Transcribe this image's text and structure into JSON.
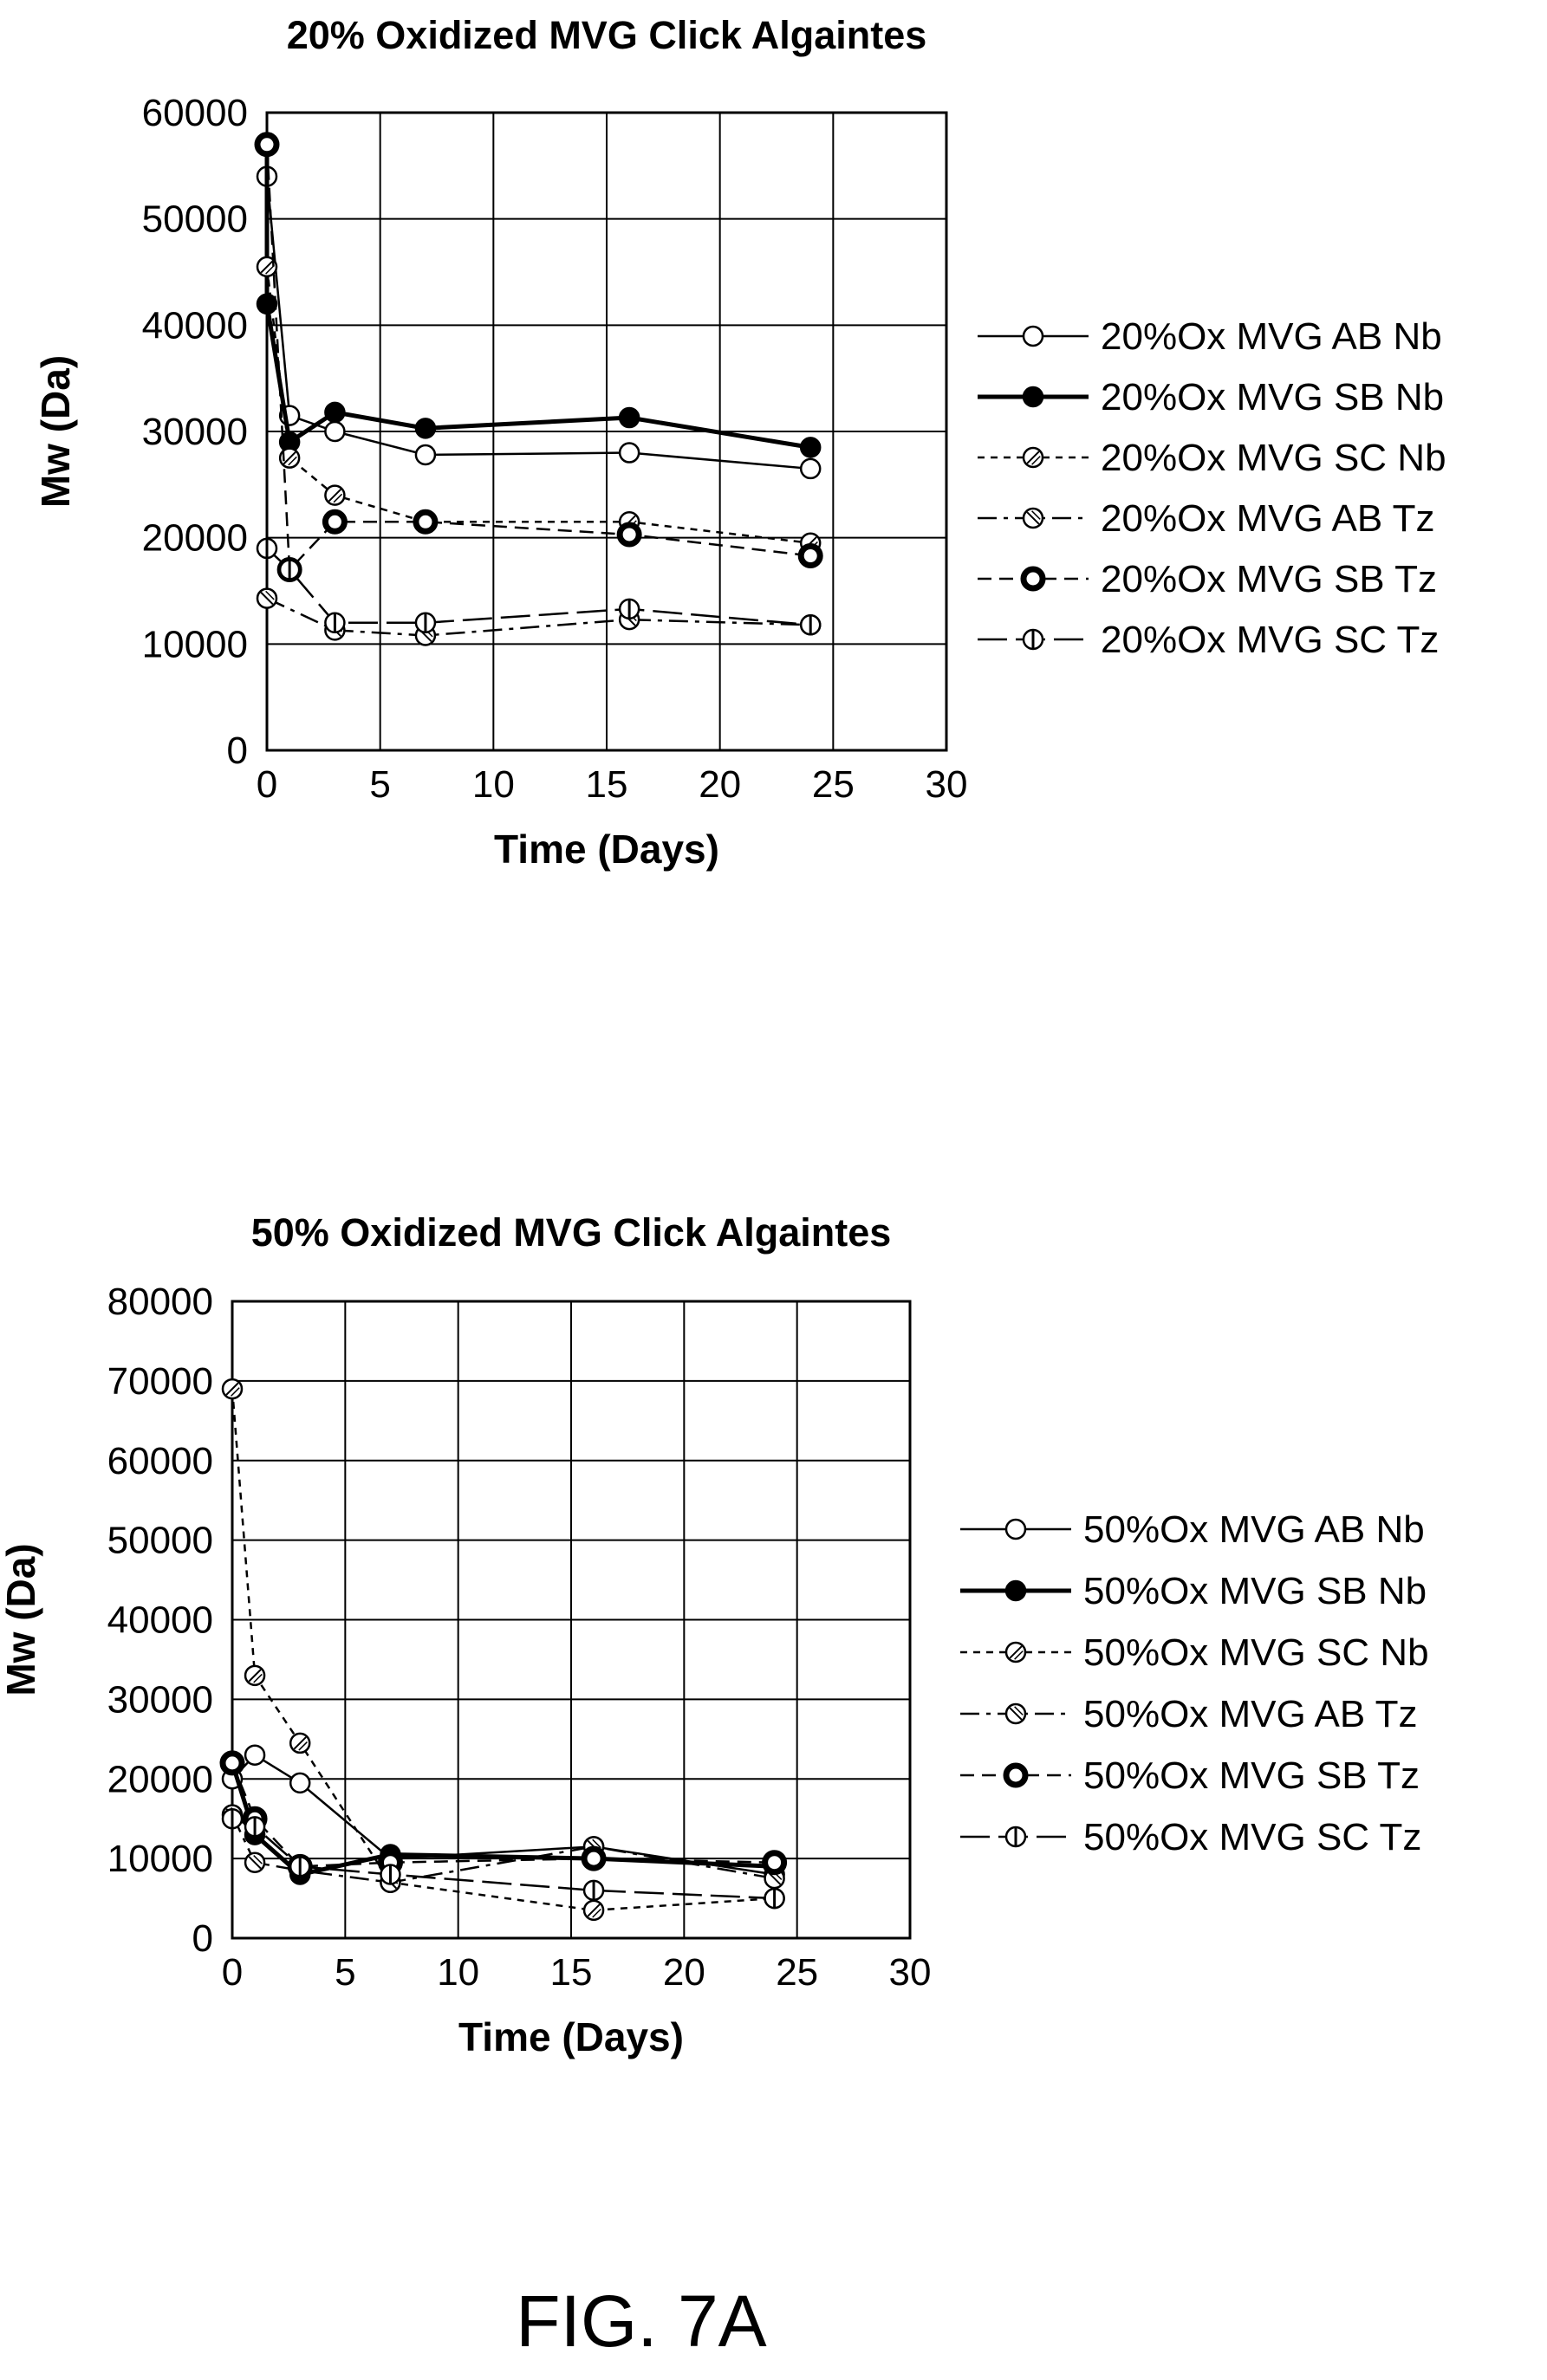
{
  "figure_label": "FIG. 7A",
  "chart_data": [
    {
      "type": "line",
      "title": "20% Oxidized MVG Click Algaintes",
      "xlabel": "Time (Days)",
      "ylabel": "Mw (Da)",
      "xlim": [
        0,
        30
      ],
      "ylim": [
        0,
        60000
      ],
      "xticks": [
        0,
        5,
        10,
        15,
        20,
        25,
        30
      ],
      "yticks": [
        0,
        10000,
        20000,
        30000,
        40000,
        50000,
        60000
      ],
      "grid": true,
      "legend_position": "right",
      "series": [
        {
          "name": "20%Ox MVG AB Nb",
          "marker": "open-circle",
          "line": "solid-thin",
          "points": [
            [
              0,
              54000
            ],
            [
              1,
              31500
            ],
            [
              3,
              30000
            ],
            [
              7,
              27800
            ],
            [
              16,
              28000
            ],
            [
              24,
              26500
            ]
          ]
        },
        {
          "name": "20%Ox MVG SB Nb",
          "marker": "filled-circle",
          "line": "solid-bold",
          "points": [
            [
              0,
              57000
            ],
            [
              0,
              42000
            ],
            [
              1,
              29000
            ],
            [
              3,
              31800
            ],
            [
              7,
              30300
            ],
            [
              16,
              31300
            ],
            [
              24,
              28500
            ]
          ]
        },
        {
          "name": "20%Ox MVG SC Nb",
          "marker": "slash-circle",
          "line": "short-dash",
          "points": [
            [
              0,
              45500
            ],
            [
              1,
              27500
            ],
            [
              3,
              24000
            ],
            [
              7,
              21500
            ],
            [
              16,
              21500
            ],
            [
              24,
              19500
            ]
          ]
        },
        {
          "name": "20%Ox MVG AB Tz",
          "marker": "backslash-circle",
          "line": "dash-dot",
          "points": [
            [
              0,
              14300
            ],
            [
              3,
              11300
            ],
            [
              7,
              10800
            ],
            [
              16,
              12300
            ],
            [
              24,
              11800
            ]
          ]
        },
        {
          "name": "20%Ox MVG SB Tz",
          "marker": "bold-ring",
          "line": "dash",
          "points": [
            [
              0,
              57000
            ],
            [
              1,
              17000
            ],
            [
              3,
              21500
            ],
            [
              7,
              21500
            ],
            [
              16,
              20300
            ],
            [
              24,
              18300
            ]
          ]
        },
        {
          "name": "20%Ox MVG SC Tz",
          "marker": "vbar-circle",
          "line": "long-dash",
          "points": [
            [
              0,
              19000
            ],
            [
              1,
              17000
            ],
            [
              3,
              12000
            ],
            [
              7,
              12000
            ],
            [
              16,
              13300
            ],
            [
              24,
              11800
            ]
          ]
        }
      ]
    },
    {
      "type": "line",
      "title": "50% Oxidized MVG Click Algaintes",
      "xlabel": "Time (Days)",
      "ylabel": "Mw (Da)",
      "xlim": [
        0,
        30
      ],
      "ylim": [
        0,
        80000
      ],
      "xticks": [
        0,
        5,
        10,
        15,
        20,
        25,
        30
      ],
      "yticks": [
        0,
        10000,
        20000,
        30000,
        40000,
        50000,
        60000,
        70000,
        80000
      ],
      "grid": true,
      "legend_position": "right",
      "series": [
        {
          "name": "50%Ox MVG AB Nb",
          "marker": "open-circle",
          "line": "solid-thin",
          "points": [
            [
              0,
              20000
            ],
            [
              1,
              23000
            ],
            [
              3,
              19500
            ],
            [
              7,
              10000
            ],
            [
              16,
              11500
            ],
            [
              24,
              8000
            ]
          ]
        },
        {
          "name": "50%Ox MVG SB Nb",
          "marker": "filled-circle",
          "line": "solid-bold",
          "points": [
            [
              0,
              22000
            ],
            [
              1,
              13000
            ],
            [
              3,
              8000
            ],
            [
              7,
              10500
            ],
            [
              16,
              10000
            ],
            [
              24,
              9000
            ]
          ]
        },
        {
          "name": "50%Ox MVG SC Nb",
          "marker": "slash-circle",
          "line": "short-dash",
          "points": [
            [
              0,
              69000
            ],
            [
              1,
              33000
            ],
            [
              3,
              24500
            ],
            [
              7,
              7000
            ],
            [
              16,
              3500
            ],
            [
              24,
              5000
            ]
          ]
        },
        {
          "name": "50%Ox MVG AB Tz",
          "marker": "backslash-circle",
          "line": "dash-dot",
          "points": [
            [
              0,
              15500
            ],
            [
              1,
              9500
            ],
            [
              3,
              8500
            ],
            [
              7,
              7000
            ],
            [
              16,
              11500
            ],
            [
              24,
              7500
            ]
          ]
        },
        {
          "name": "50%Ox MVG SB Tz",
          "marker": "bold-ring",
          "line": "dash",
          "points": [
            [
              0,
              22000
            ],
            [
              1,
              15000
            ],
            [
              3,
              9000
            ],
            [
              7,
              9500
            ],
            [
              16,
              10000
            ],
            [
              24,
              9500
            ]
          ]
        },
        {
          "name": "50%Ox MVG SC Tz",
          "marker": "vbar-circle",
          "line": "long-dash",
          "points": [
            [
              0,
              15000
            ],
            [
              1,
              14000
            ],
            [
              3,
              9000
            ],
            [
              7,
              8000
            ],
            [
              16,
              6000
            ],
            [
              24,
              5000
            ]
          ]
        }
      ]
    }
  ]
}
